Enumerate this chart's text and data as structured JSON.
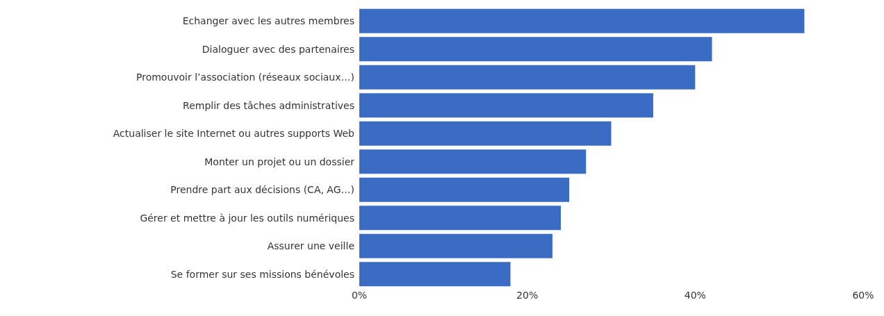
{
  "chart_data": {
    "type": "bar",
    "orientation": "horizontal",
    "categories": [
      "Echanger avec les autres membres",
      "Dialoguer avec des partenaires",
      "Promouvoir l’association (réseaux sociaux…)",
      "Remplir des tâches administratives",
      "Actualiser le site Internet ou autres supports Web",
      "Monter un projet ou un dossier",
      "Prendre part aux décisions (CA, AG…)",
      "Gérer et mettre à jour les outils numériques",
      "Assurer une veille",
      "Se former sur ses missions bénévoles"
    ],
    "values": [
      53,
      42,
      40,
      35,
      30,
      27,
      25,
      24,
      23,
      18
    ],
    "color": "#3a6cc4",
    "xlim": [
      0,
      60
    ],
    "xticks": [
      {
        "value": 0,
        "label": "0%"
      },
      {
        "value": 20,
        "label": "20%"
      },
      {
        "value": 40,
        "label": "40%"
      },
      {
        "value": 60,
        "label": "60%"
      }
    ],
    "grid": false
  }
}
